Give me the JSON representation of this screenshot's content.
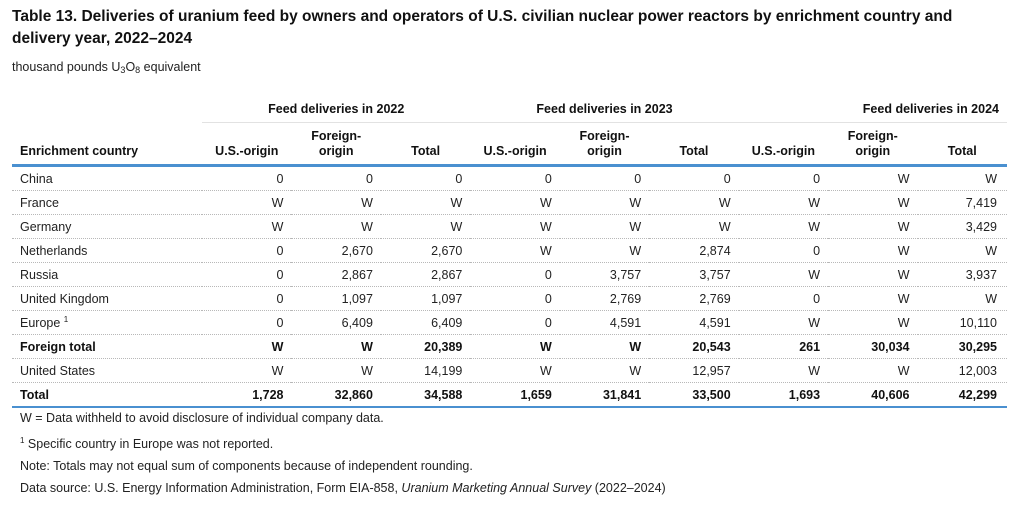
{
  "title": "Table 13. Deliveries of uranium feed by owners and operators of U.S. civilian nuclear power reactors by enrichment country and delivery year, 2022–2024",
  "unit": {
    "prefix": "thousand pounds U",
    "sub1": "3",
    "mid": "O",
    "sub2": "8",
    "suffix": " equivalent"
  },
  "groups": [
    "Feed deliveries in 2022",
    "Feed deliveries in 2023",
    "Feed deliveries in 2024"
  ],
  "columns": {
    "first": "Enrichment country",
    "us_origin": "U.S.-origin",
    "foreign_origin_1": "Foreign-",
    "foreign_origin_2": "origin",
    "total": "Total"
  },
  "rows": [
    {
      "label": "China",
      "sup": "",
      "bold": false,
      "values": [
        "0",
        "0",
        "0",
        "0",
        "0",
        "0",
        "0",
        "W",
        "W"
      ]
    },
    {
      "label": "France",
      "sup": "",
      "bold": false,
      "values": [
        "W",
        "W",
        "W",
        "W",
        "W",
        "W",
        "W",
        "W",
        "7,419"
      ]
    },
    {
      "label": "Germany",
      "sup": "",
      "bold": false,
      "values": [
        "W",
        "W",
        "W",
        "W",
        "W",
        "W",
        "W",
        "W",
        "3,429"
      ]
    },
    {
      "label": "Netherlands",
      "sup": "",
      "bold": false,
      "values": [
        "0",
        "2,670",
        "2,670",
        "W",
        "W",
        "2,874",
        "0",
        "W",
        "W"
      ]
    },
    {
      "label": "Russia",
      "sup": "",
      "bold": false,
      "values": [
        "0",
        "2,867",
        "2,867",
        "0",
        "3,757",
        "3,757",
        "W",
        "W",
        "3,937"
      ]
    },
    {
      "label": "United Kingdom",
      "sup": "",
      "bold": false,
      "values": [
        "0",
        "1,097",
        "1,097",
        "0",
        "2,769",
        "2,769",
        "0",
        "W",
        "W"
      ]
    },
    {
      "label": "Europe",
      "sup": "1",
      "bold": false,
      "values": [
        "0",
        "6,409",
        "6,409",
        "0",
        "4,591",
        "4,591",
        "W",
        "W",
        "10,110"
      ]
    },
    {
      "label": "Foreign total",
      "sup": "",
      "bold": true,
      "values": [
        "W",
        "W",
        "20,389",
        "W",
        "W",
        "20,543",
        "261",
        "30,034",
        "30,295"
      ]
    },
    {
      "label": "United States",
      "sup": "",
      "bold": false,
      "values": [
        "W",
        "W",
        "14,199",
        "W",
        "W",
        "12,957",
        "W",
        "W",
        "12,003"
      ]
    },
    {
      "label": "Total",
      "sup": "",
      "bold": true,
      "values": [
        "1,728",
        "32,860",
        "34,588",
        "1,659",
        "31,841",
        "33,500",
        "1,693",
        "40,606",
        "42,299"
      ]
    }
  ],
  "notes": {
    "withheld": "W = Data withheld to avoid disclosure of individual company data.",
    "footnote_mark": "1",
    "footnote": " Specific country in Europe was not reported.",
    "rounding": "Note: Totals may not equal sum of components because of independent rounding.",
    "source_prefix": "Data source: U.S. Energy Information Administration, Form EIA-858, ",
    "source_title": "Uranium Marketing Annual Survey",
    "source_suffix": " (2022–2024)"
  }
}
